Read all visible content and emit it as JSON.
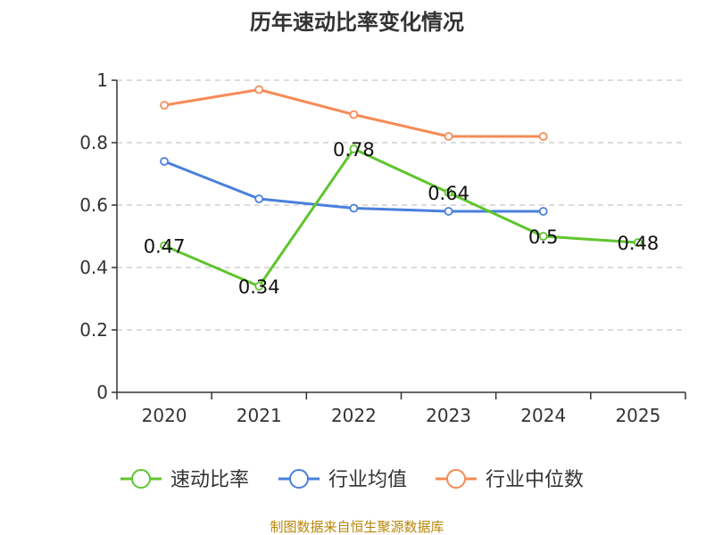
{
  "chart_data": {
    "type": "line",
    "title": "历年速动比率变化情况",
    "categories": [
      "2020",
      "2021",
      "2022",
      "2023",
      "2024",
      "2025"
    ],
    "ylim": [
      0,
      1
    ],
    "yticks": [
      "0",
      "0.2",
      "0.4",
      "0.6",
      "0.8",
      "1"
    ],
    "ytick_values": [
      0,
      0.2,
      0.4,
      0.6,
      0.8,
      1
    ],
    "grid": true,
    "legend_position": "bottom",
    "series": [
      {
        "name": "速动比率",
        "color": "#5fc52e",
        "values": [
          0.47,
          0.34,
          0.78,
          0.64,
          0.5,
          0.48
        ],
        "labels": [
          "0.47",
          "0.34",
          "0.78",
          "0.64",
          "0.5",
          "0.48"
        ],
        "show_labels": true
      },
      {
        "name": "行业均值",
        "color": "#4a7fdd",
        "values": [
          0.74,
          0.62,
          0.59,
          0.58,
          0.58,
          null
        ],
        "show_labels": false
      },
      {
        "name": "行业中位数",
        "color": "#f68b57",
        "values": [
          0.92,
          0.97,
          0.89,
          0.82,
          0.82,
          null
        ],
        "show_labels": false
      }
    ],
    "source": "制图数据来自恒生聚源数据库"
  }
}
